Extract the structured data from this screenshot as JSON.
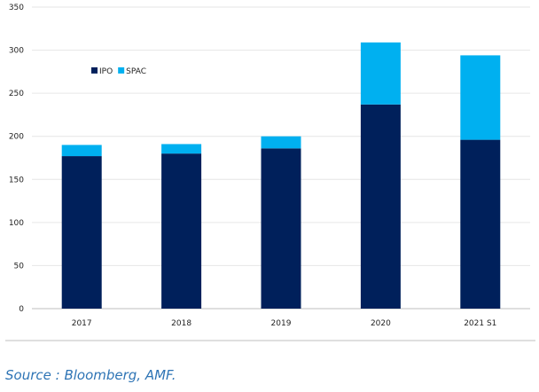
{
  "chart_data": {
    "type": "bar",
    "stacked": true,
    "categories": [
      "2017",
      "2018",
      "2019",
      "2020",
      "2021 S1"
    ],
    "series": [
      {
        "name": "IPO",
        "color": "#00205b",
        "values": [
          177,
          180,
          186,
          237,
          196
        ]
      },
      {
        "name": "SPAC",
        "color": "#00b0f0",
        "values": [
          13,
          11,
          14,
          72,
          98
        ]
      }
    ],
    "ylim": [
      0,
      350
    ],
    "yticks": [
      0,
      50,
      100,
      150,
      200,
      250,
      300,
      350
    ],
    "grid": true,
    "legend_position": "top-left"
  },
  "source": "Source : Bloomberg, AMF."
}
